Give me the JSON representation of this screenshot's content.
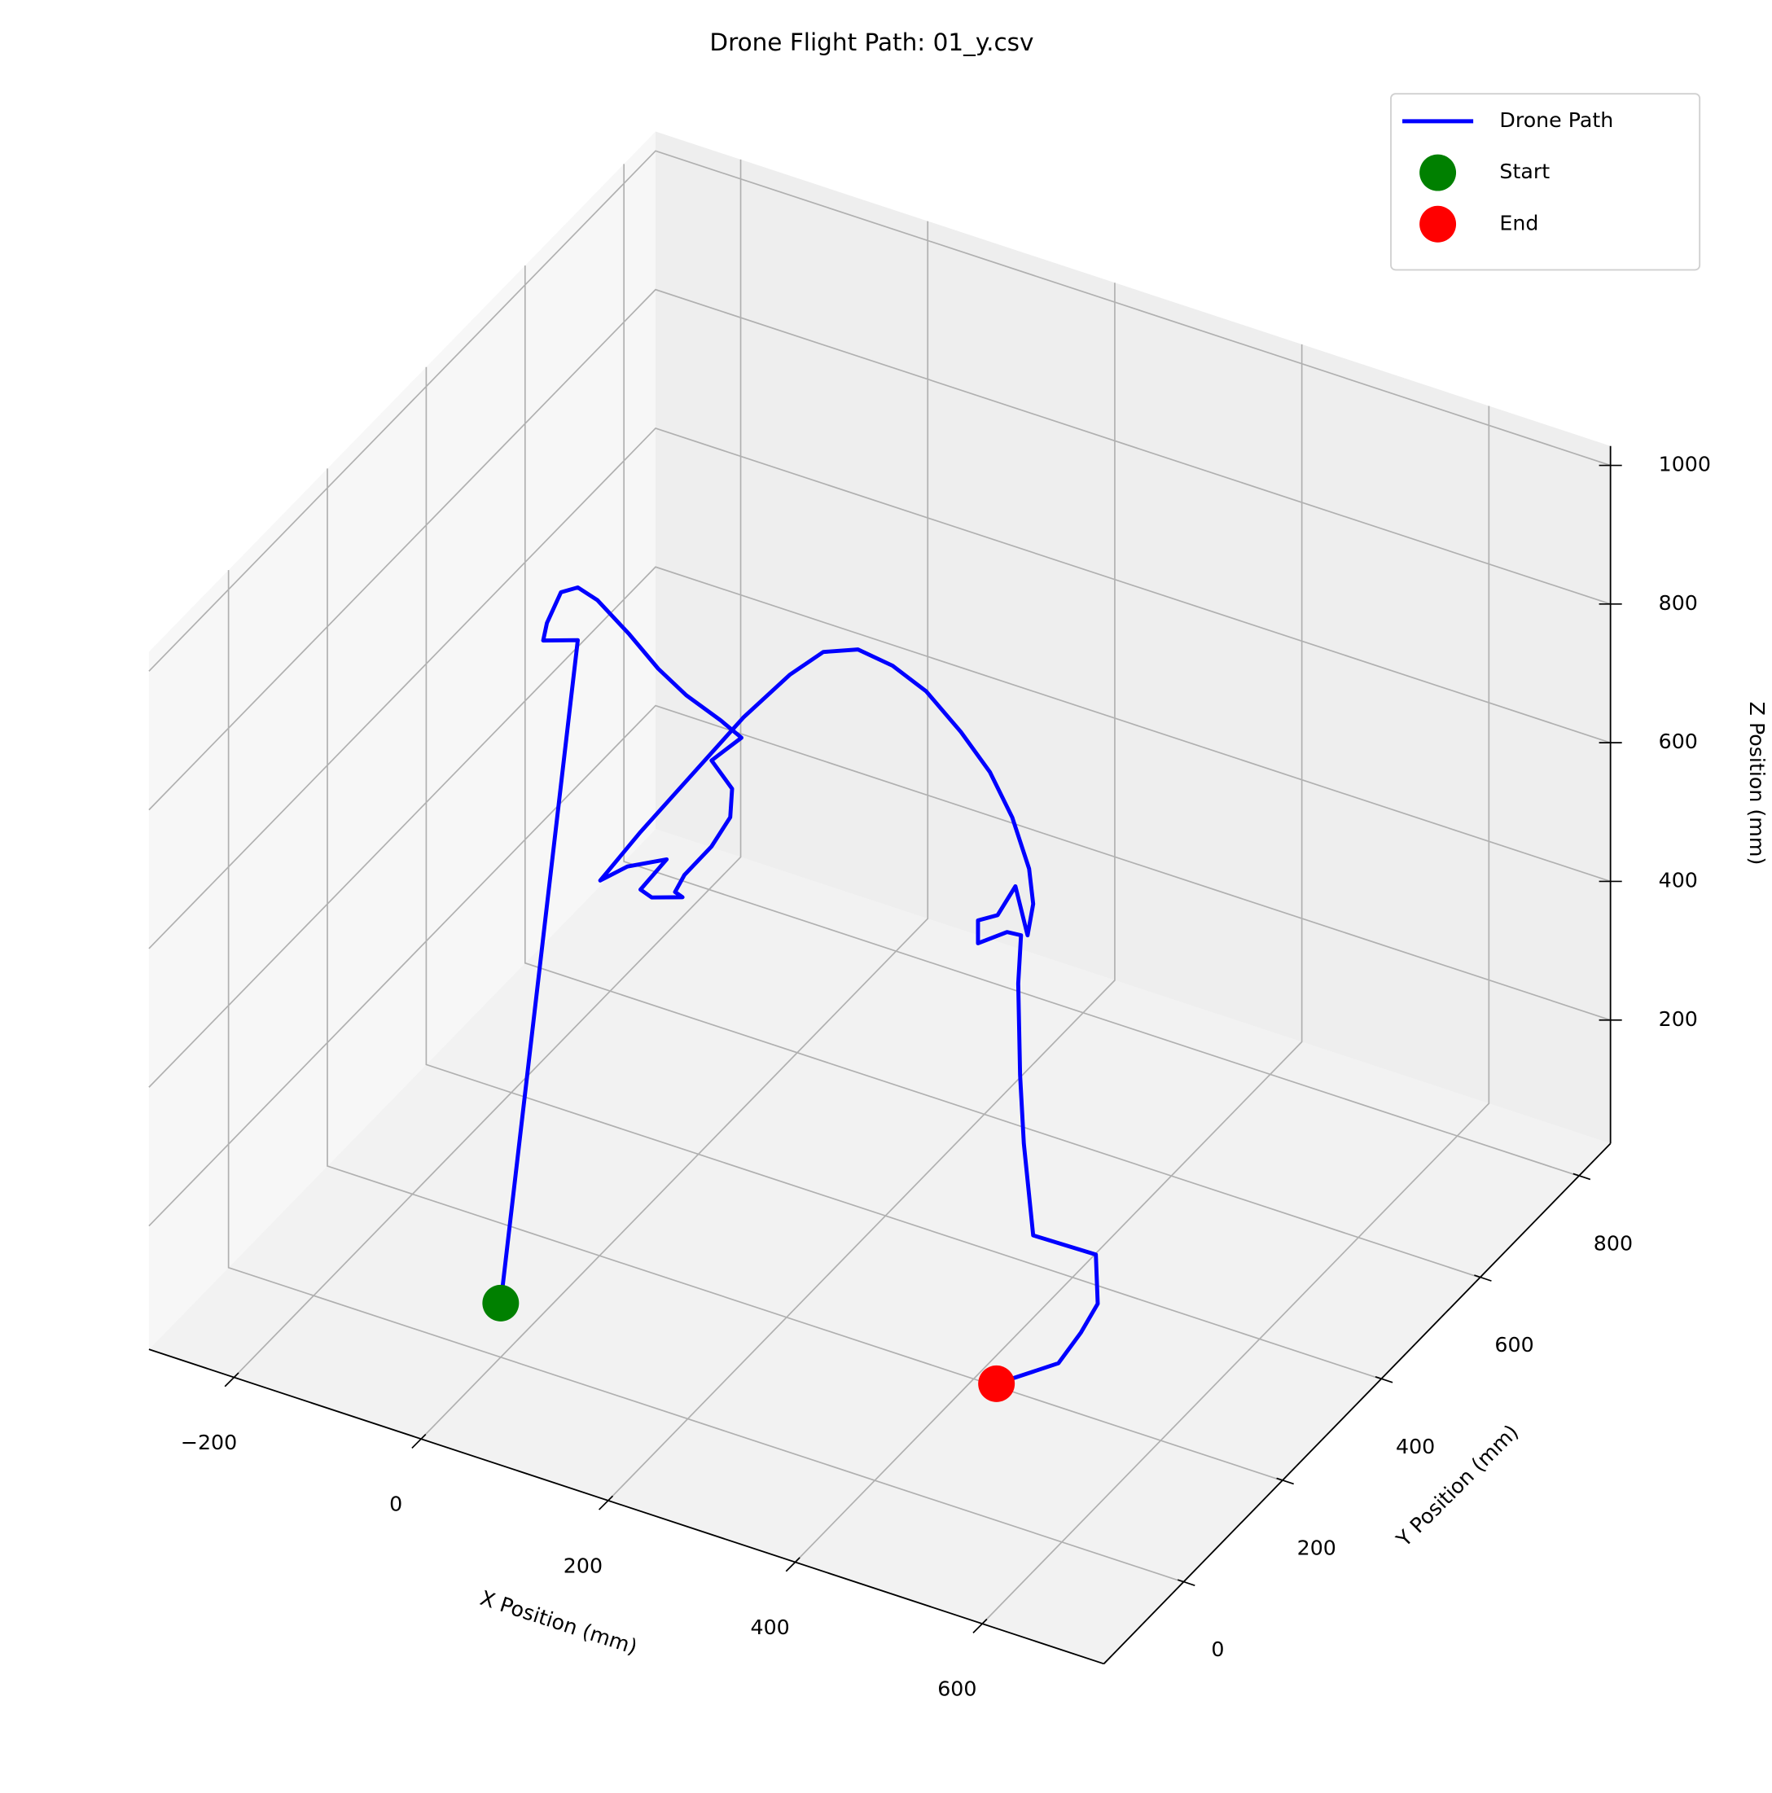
{
  "chart_data": {
    "type": "line3d",
    "title": "Drone Flight Path: 01_y.csv",
    "xlabel": "X Position (mm)",
    "ylabel": "Y Position (mm)",
    "zlabel": "Z Position (mm)",
    "xlim": [
      -291,
      730
    ],
    "ylim": [
      -161,
      864
    ],
    "zlim": [
      22,
      1028
    ],
    "xticks": [
      {
        "value": -200,
        "label": "−200"
      },
      0,
      200,
      400,
      600
    ],
    "yticks": [
      0,
      200,
      400,
      600,
      800
    ],
    "zticks": [
      200,
      400,
      600,
      800,
      1000
    ],
    "grid": true,
    "legend": "upper right",
    "series": [
      {
        "name": "Drone Path",
        "color": "#0000ff",
        "kind": "line",
        "x": [
          0,
          0,
          -37,
          -33,
          -18,
          0,
          21,
          55,
          86,
          116,
          153,
          175,
          143,
          165,
          163,
          143,
          114,
          104,
          112,
          79,
          67,
          95,
          53,
          24,
          67,
          122,
          177,
          77,
          113,
          150,
          187,
          223,
          260,
          291,
          315,
          333,
          405,
          399,
          386,
          367,
          346,
          346,
          377,
          392,
          389,
          391,
          395,
          405,
          472,
          474,
          482,
          488,
          454
        ],
        "y": [
          0,
          156,
          156,
          156,
          156,
          156,
          156,
          156,
          156,
          156,
          156,
          156,
          156,
          156,
          156,
          156,
          156,
          156,
          156,
          156,
          156,
          156,
          156,
          156,
          156,
          156,
          156,
          439,
          439,
          439,
          439,
          439,
          439,
          439,
          439,
          439,
          311,
          311,
          311,
          311,
          311,
          311,
          311,
          311,
          311,
          311,
          311,
          311,
          311,
          311,
          262,
          205,
          144
        ],
        "z": [
          100,
          942,
          925,
          952,
          1003,
          1018,
          1009,
          975,
          939,
          914,
          894,
          879,
          832,
          801,
          759,
          708,
          654,
          625,
          621,
          606,
          612,
          668,
          639,
          606,
          695,
          802,
          909,
          719,
          768,
          788,
          781,
          760,
          718,
          674,
          619,
          553,
          628,
          580,
          645,
          595,
          578,
          545,
          575,
          577,
          506,
          375,
          278,
          150,
          152,
          82,
          80,
          80,
          80
        ]
      },
      {
        "name": "Start",
        "color": "#008000",
        "kind": "scatter",
        "x": [
          0
        ],
        "y": [
          0
        ],
        "z": [
          100
        ]
      },
      {
        "name": "End",
        "color": "#ff0000",
        "kind": "scatter",
        "x": [
          454
        ],
        "y": [
          144
        ],
        "z": [
          80
        ]
      }
    ]
  }
}
